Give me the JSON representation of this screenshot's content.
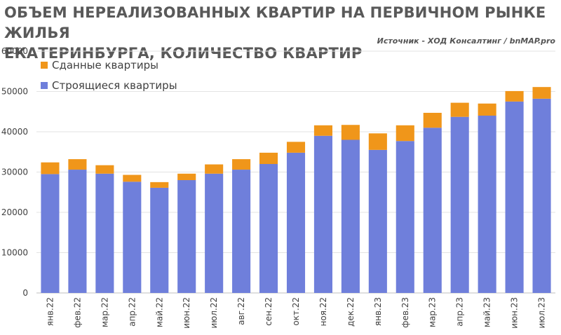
{
  "title": "ОБЪЕМ НЕРЕАЛИЗОВАННЫХ КВАРТИР НА ПЕРВИЧНОМ РЫНКЕ ЖИЛЬЯ\nЕКАТЕРИНБУРГА, КОЛИЧЕСТВО КВАРТИР",
  "source": "Источник - ХОД Консалтинг / bnMAP.pro",
  "chart_data": {
    "type": "bar",
    "stacked": true,
    "categories": [
      "янв.22",
      "фев.22",
      "мар.22",
      "апр.22",
      "май.22",
      "июн.22",
      "июл.22",
      "авг.22",
      "сен.22",
      "окт.22",
      "ноя.22",
      "дек.22",
      "янв.23",
      "фев.23",
      "мар.23",
      "апр.23",
      "май.23",
      "июн.23",
      "июл.23"
    ],
    "series": [
      {
        "name": "Строящиеся квартиры",
        "color": "#6f7fdb",
        "values": [
          29500,
          30600,
          29600,
          27600,
          26100,
          28000,
          29600,
          30600,
          32000,
          34800,
          39000,
          38000,
          35500,
          37700,
          41000,
          43700,
          44000,
          47500,
          48200
        ]
      },
      {
        "name": "Сданные квартиры",
        "color": "#f0961a",
        "values": [
          2900,
          2600,
          2100,
          1700,
          1400,
          1600,
          2300,
          2600,
          2800,
          2700,
          2600,
          3700,
          4100,
          3900,
          3700,
          3500,
          3000,
          2600,
          2900
        ]
      }
    ],
    "yticks": [
      0,
      10000,
      20000,
      30000,
      40000,
      50000,
      60000
    ],
    "ylim": [
      0,
      60000
    ],
    "grid": true,
    "legend": "top-left"
  }
}
